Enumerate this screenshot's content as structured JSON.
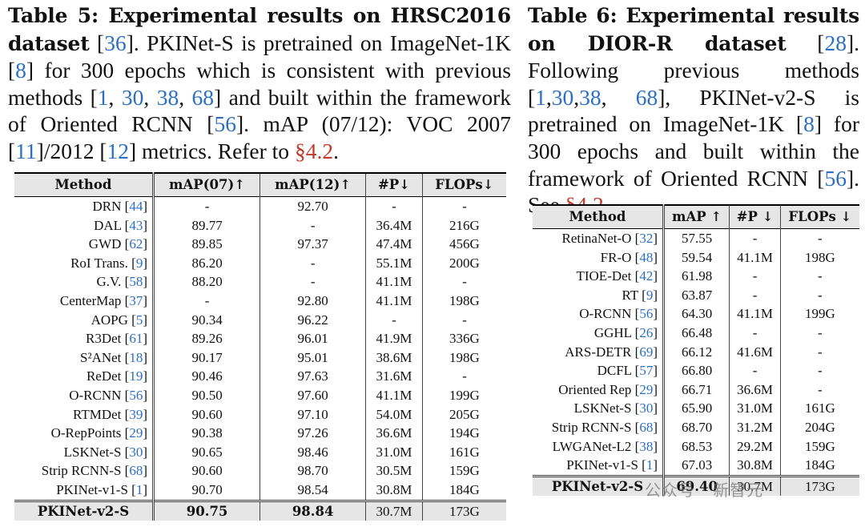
{
  "table5": {
    "caption": {
      "label": "Table 5: Experimental results on HRSC2016 dataset",
      "parts": [
        {
          "t": " ["
        },
        {
          "t": "36",
          "ref": true
        },
        {
          "t": "]. PKINet-S is pretrained on ImageNet-1K ["
        },
        {
          "t": "8",
          "ref": true
        },
        {
          "t": "] for 300 epochs which is consistent with previous methods ["
        },
        {
          "t": "1",
          "ref": true
        },
        {
          "t": ", "
        },
        {
          "t": "30",
          "ref": true
        },
        {
          "t": ", "
        },
        {
          "t": "38",
          "ref": true
        },
        {
          "t": ", "
        },
        {
          "t": "68",
          "ref": true
        },
        {
          "t": "] and built within the framework of Oriented RCNN ["
        },
        {
          "t": "56",
          "ref": true
        },
        {
          "t": "]. mAP (07/12): VOC 2007 ["
        },
        {
          "t": "11",
          "ref": true
        },
        {
          "t": "]/2012 ["
        },
        {
          "t": "12",
          "ref": true
        },
        {
          "t": "] metrics. Refer to "
        },
        {
          "t": "§4.2",
          "sec": true
        },
        {
          "t": "."
        }
      ]
    },
    "headers": [
      "Method",
      "mAP(07)↑",
      "mAP(12)↑",
      "#P↓",
      "FLOPs↓"
    ],
    "rows": [
      {
        "method": "DRN ",
        "ref": "44",
        "v": [
          "-",
          "92.70",
          "-",
          "-"
        ]
      },
      {
        "method": "DAL ",
        "ref": "43",
        "v": [
          "89.77",
          "-",
          "36.4M",
          "216G"
        ]
      },
      {
        "method": "GWD ",
        "ref": "62",
        "v": [
          "89.85",
          "97.37",
          "47.4M",
          "456G"
        ]
      },
      {
        "method": "RoI Trans. ",
        "ref": "9",
        "v": [
          "86.20",
          "-",
          "55.1M",
          "200G"
        ]
      },
      {
        "method": "G.V. ",
        "ref": "58",
        "v": [
          "88.20",
          "-",
          "41.1M",
          "-"
        ]
      },
      {
        "method": "CenterMap ",
        "ref": "37",
        "v": [
          "-",
          "92.80",
          "41.1M",
          "198G"
        ]
      },
      {
        "method": "AOPG ",
        "ref": "5",
        "v": [
          "90.34",
          "96.22",
          "-",
          "-"
        ]
      },
      {
        "method": "R3Det ",
        "ref": "61",
        "v": [
          "89.26",
          "96.01",
          "41.9M",
          "336G"
        ]
      },
      {
        "method": "S²ANet ",
        "ref": "18",
        "v": [
          "90.17",
          "95.01",
          "38.6M",
          "198G"
        ]
      },
      {
        "method": "ReDet ",
        "ref": "19",
        "v": [
          "90.46",
          "97.63",
          "31.6M",
          "-"
        ]
      },
      {
        "method": "O-RCNN ",
        "ref": "56",
        "v": [
          "90.50",
          "97.60",
          "41.1M",
          "199G"
        ]
      },
      {
        "method": "RTMDet ",
        "ref": "39",
        "v": [
          "90.60",
          "97.10",
          "54.0M",
          "205G"
        ]
      },
      {
        "method": "O-RepPoints ",
        "ref": "29",
        "v": [
          "90.38",
          "97.26",
          "36.6M",
          "194G"
        ]
      },
      {
        "method": "LSKNet-S ",
        "ref": "30",
        "v": [
          "90.65",
          "98.46",
          "31.0M",
          "161G"
        ]
      },
      {
        "method": "Strip RCNN-S ",
        "ref": "68",
        "v": [
          "90.60",
          "98.70",
          "30.5M",
          "159G"
        ]
      },
      {
        "method": "PKINet-v1-S ",
        "ref": "1",
        "v": [
          "90.70",
          "98.54",
          "30.8M",
          "184G"
        ]
      }
    ],
    "final": {
      "method": "PKINet-v2-S",
      "v": [
        "90.75",
        "98.84",
        "30.7M",
        "173G"
      ]
    }
  },
  "table6": {
    "caption": {
      "label": "Table 6: Experimental results on DIOR-R dataset",
      "parts": [
        {
          "t": " ["
        },
        {
          "t": "28",
          "ref": true
        },
        {
          "t": "]. Following previous methods ["
        },
        {
          "t": "1",
          "ref": true
        },
        {
          "t": ","
        },
        {
          "t": "30",
          "ref": true
        },
        {
          "t": ","
        },
        {
          "t": "38",
          "ref": true
        },
        {
          "t": ", "
        },
        {
          "t": "68",
          "ref": true
        },
        {
          "t": "], PKINet-v2-S is pretrained on ImageNet-1K ["
        },
        {
          "t": "8",
          "ref": true
        },
        {
          "t": "] for 300 epochs and built within the framework of Oriented RCNN ["
        },
        {
          "t": "56",
          "ref": true
        },
        {
          "t": "]. See "
        },
        {
          "t": "§4.2",
          "sec": true
        },
        {
          "t": "."
        }
      ]
    },
    "headers": [
      "Method",
      "mAP ↑",
      "#P ↓",
      "FLOPs ↓"
    ],
    "rows": [
      {
        "method": "RetinaNet-O ",
        "ref": "32",
        "v": [
          "57.55",
          "-",
          "-"
        ]
      },
      {
        "method": "FR-O ",
        "ref": "48",
        "v": [
          "59.54",
          "41.1M",
          "198G"
        ]
      },
      {
        "method": "TIOE-Det ",
        "ref": "42",
        "v": [
          "61.98",
          "-",
          "-"
        ]
      },
      {
        "method": "RT ",
        "ref": "9",
        "v": [
          "63.87",
          "-",
          "-"
        ]
      },
      {
        "method": "O-RCNN ",
        "ref": "56",
        "v": [
          "64.30",
          "41.1M",
          "199G"
        ]
      },
      {
        "method": "GGHL ",
        "ref": "26",
        "v": [
          "66.48",
          "-",
          "-"
        ]
      },
      {
        "method": "ARS-DETR ",
        "ref": "69",
        "v": [
          "66.12",
          "41.6M",
          "-"
        ]
      },
      {
        "method": "DCFL ",
        "ref": "57",
        "v": [
          "66.80",
          "-",
          "-"
        ]
      },
      {
        "method": "Oriented Rep ",
        "ref": "29",
        "v": [
          "66.71",
          "36.6M",
          "-"
        ]
      },
      {
        "method": "LSKNet-S ",
        "ref": "30",
        "v": [
          "65.90",
          "31.0M",
          "161G"
        ]
      },
      {
        "method": "Strip RCNN-S ",
        "ref": "68",
        "v": [
          "68.70",
          "31.2M",
          "204G"
        ]
      },
      {
        "method": "LWGANet-L2 ",
        "ref": "38",
        "v": [
          "68.53",
          "29.2M",
          "159G"
        ]
      },
      {
        "method": "PKINet-v1-S ",
        "ref": "1",
        "v": [
          "67.03",
          "30.8M",
          "184G"
        ]
      }
    ],
    "final": {
      "method": "PKINet-v2-S",
      "v": [
        "69.40",
        "30.7M",
        "173G"
      ]
    }
  },
  "watermark": "公众号 · 新智元"
}
